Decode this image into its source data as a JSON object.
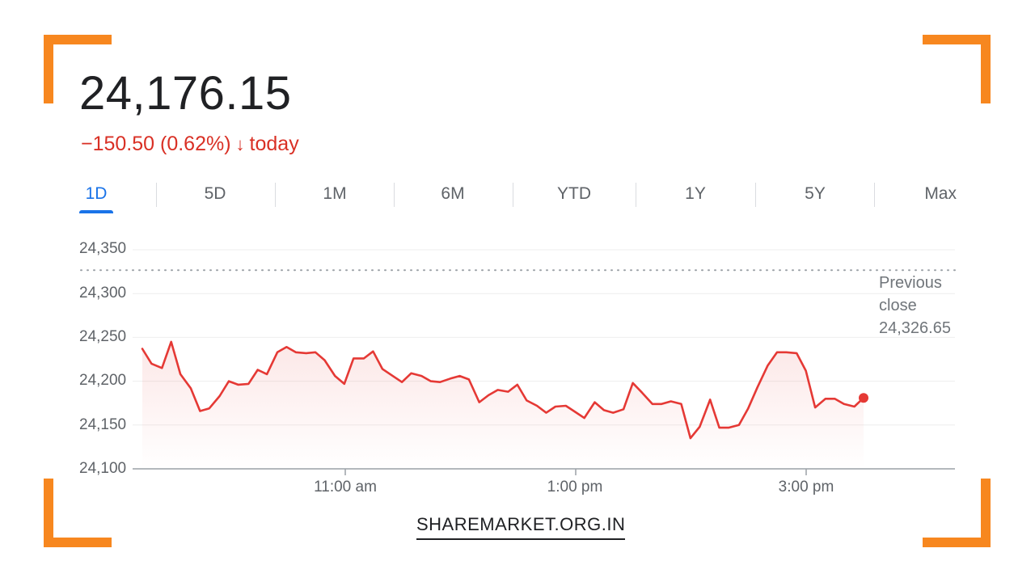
{
  "quote": {
    "price": "24,176.15",
    "change": "−150.50 (0.62%)",
    "change_arrow": "↓",
    "change_period": "today"
  },
  "tabs": [
    {
      "label": "1D",
      "active": true
    },
    {
      "label": "5D"
    },
    {
      "label": "1M"
    },
    {
      "label": "6M"
    },
    {
      "label": "YTD"
    },
    {
      "label": "1Y"
    },
    {
      "label": "5Y"
    },
    {
      "label": "Max"
    }
  ],
  "previous_close": {
    "line1": "Previous",
    "line2": "close",
    "value": "24,326.65"
  },
  "footer": {
    "brand": "SHAREMARKET.ORG.IN"
  },
  "colors": {
    "accent_orange": "#f7871f",
    "line_red": "#e53935",
    "active_tab_blue": "#1a73e8"
  },
  "chart_data": {
    "type": "line",
    "title": "",
    "xlabel": "",
    "ylabel": "",
    "ylim": [
      24100,
      24350
    ],
    "yticks": [
      24350,
      24300,
      24250,
      24200,
      24150,
      24100
    ],
    "ytick_labels": [
      "24,350",
      "24,300",
      "24,250",
      "24,200",
      "24,150",
      "24,100"
    ],
    "xtick_labels": [
      {
        "label": "11:00 am",
        "x": 11.0
      },
      {
        "label": "1:00 pm",
        "x": 13.0
      },
      {
        "label": "3:00 pm",
        "x": 15.0
      }
    ],
    "xlim": [
      9.25,
      15.5
    ],
    "previous_close": 24326.65,
    "series": [
      {
        "x": [
          9.25,
          9.33,
          9.42,
          9.5,
          9.58,
          9.67,
          9.75,
          9.83,
          9.92,
          10.0,
          10.08,
          10.17,
          10.25,
          10.33,
          10.42,
          10.5,
          10.58,
          10.67,
          10.75,
          10.83,
          10.92,
          11.0,
          11.08,
          11.17,
          11.25,
          11.33,
          11.42,
          11.5,
          11.58,
          11.67,
          11.75,
          11.83,
          11.92,
          12.0,
          12.08,
          12.17,
          12.25,
          12.33,
          12.42,
          12.5,
          12.58,
          12.67,
          12.75,
          12.83,
          12.92,
          13.0,
          13.08,
          13.17,
          13.25,
          13.33,
          13.42,
          13.5,
          13.58,
          13.67,
          13.75,
          13.83,
          13.92,
          14.0,
          14.08,
          14.17,
          14.25,
          14.33,
          14.42,
          14.5,
          14.58,
          14.67,
          14.75,
          14.83,
          14.92,
          15.0,
          15.08,
          15.17,
          15.25,
          15.33,
          15.42,
          15.5
        ],
        "y": [
          24237,
          24220,
          24215,
          24245,
          24208,
          24192,
          24166,
          24169,
          24183,
          24200,
          24196,
          24197,
          24213,
          24208,
          24233,
          24239,
          24233,
          24232,
          24233,
          24224,
          24206,
          24197,
          24226,
          24226,
          24234,
          24214,
          24206,
          24199,
          24209,
          24206,
          24200,
          24199,
          24203,
          24206,
          24202,
          24176,
          24184,
          24190,
          24188,
          24196,
          24178,
          24172,
          24164,
          24171,
          24172,
          24165,
          24158,
          24176,
          24167,
          24164,
          24168,
          24198,
          24187,
          24174,
          24174,
          24177,
          24174,
          24135,
          24148,
          24179,
          24147,
          24147,
          24150,
          24169,
          24193,
          24218,
          24233,
          24233,
          24232,
          24212,
          24170,
          24180,
          24180,
          24174,
          24171,
          24181
        ]
      }
    ]
  }
}
